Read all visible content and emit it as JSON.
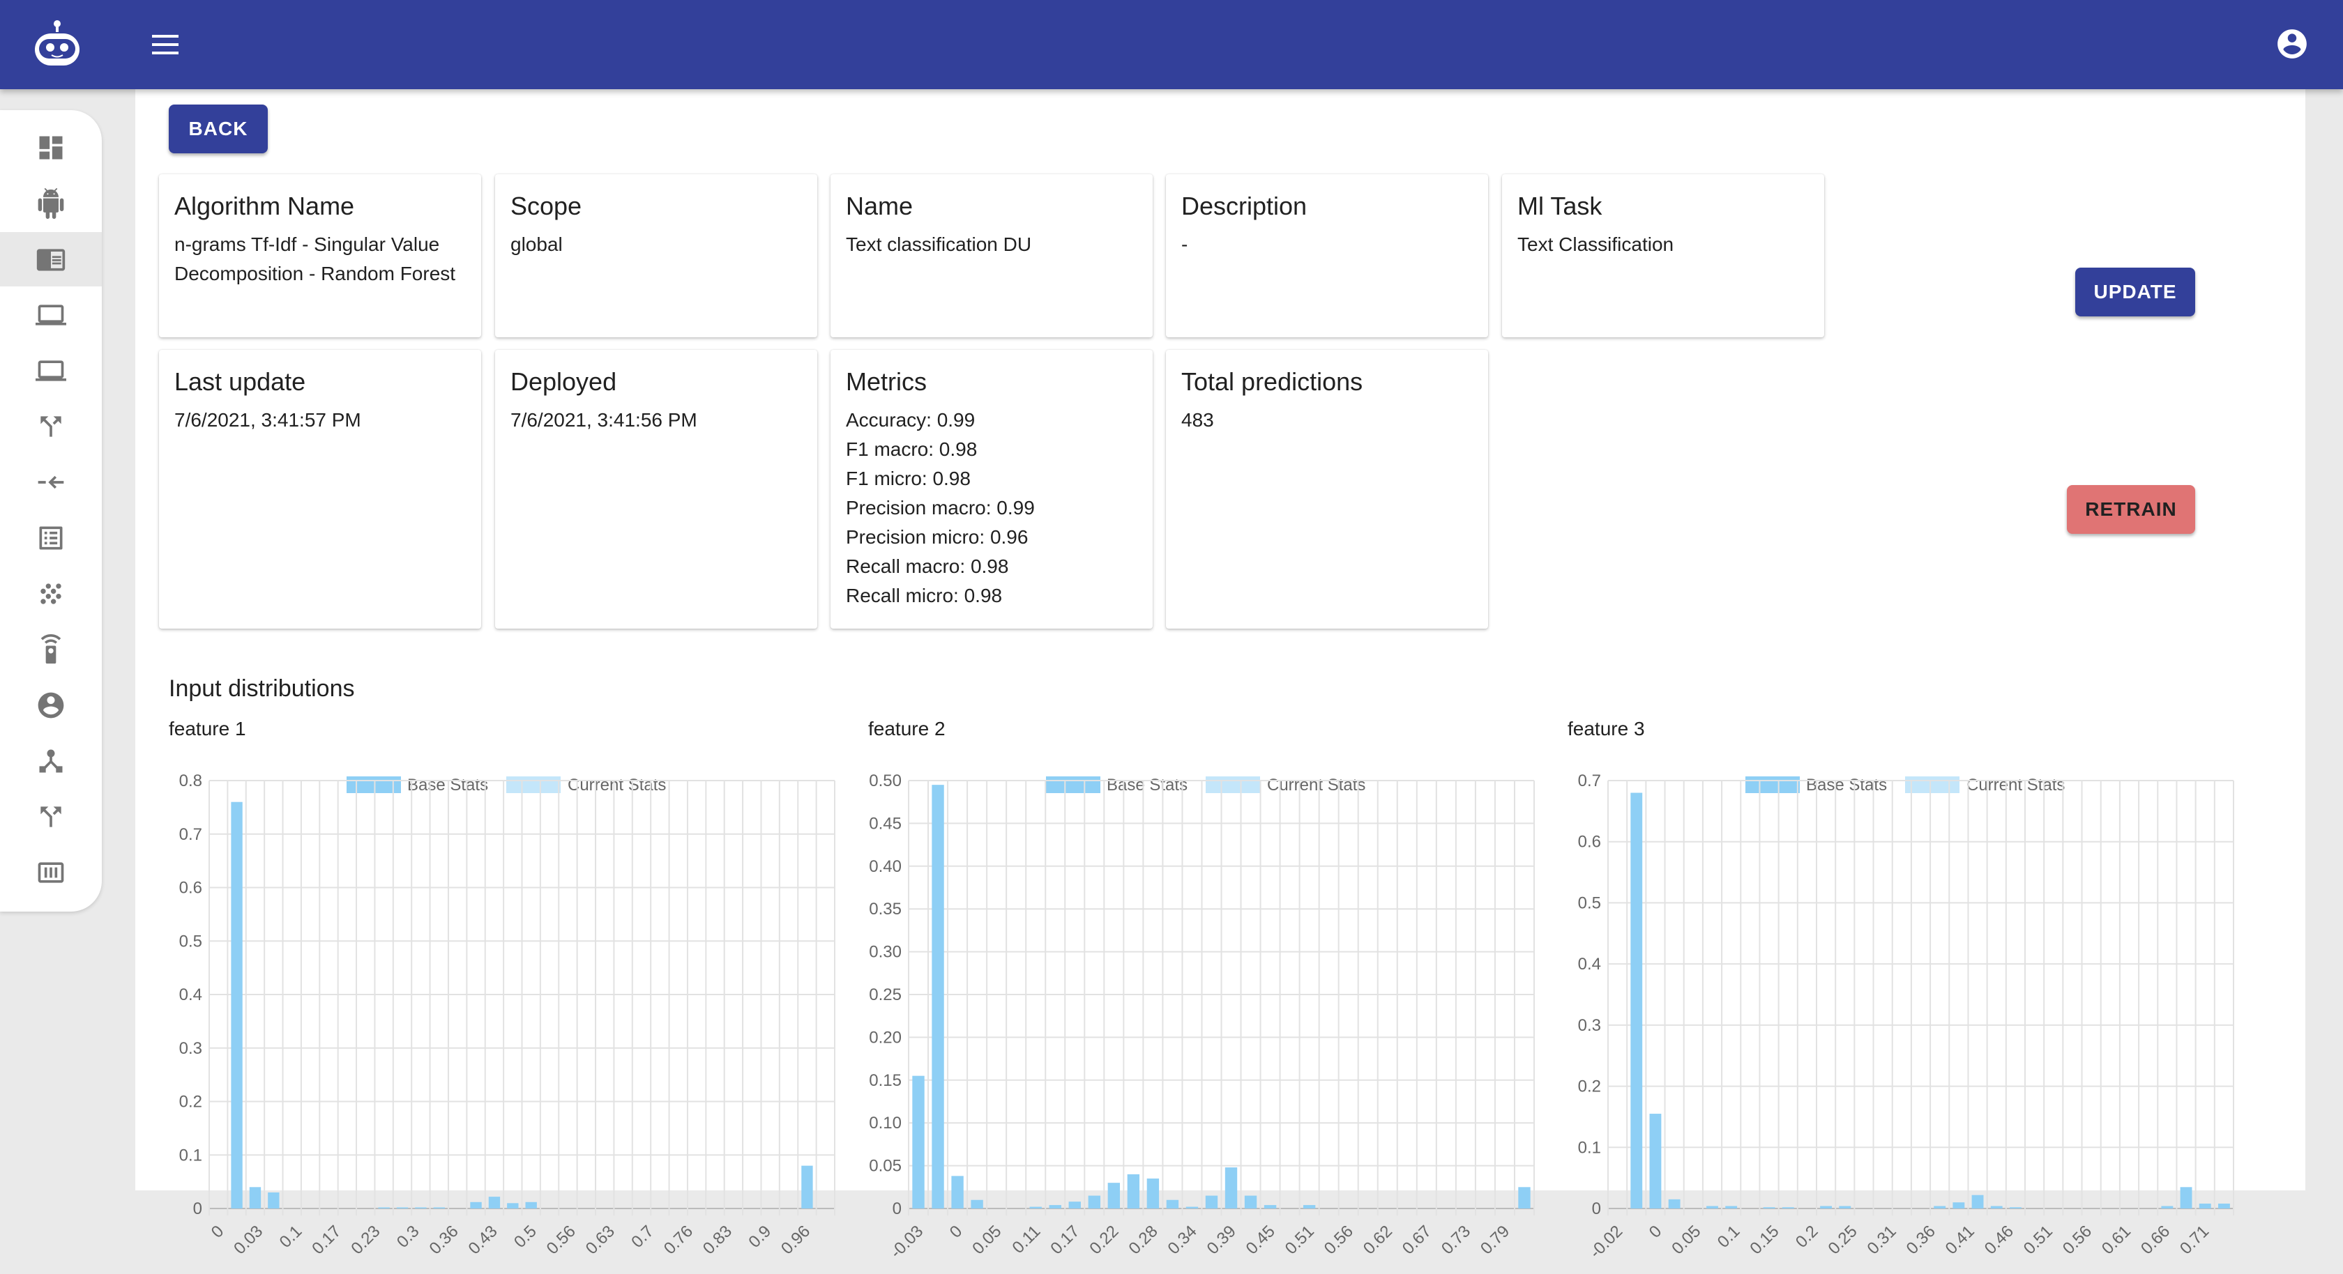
{
  "header": {
    "logo": "robot-logo-icon",
    "menu_icon": "menu-icon",
    "account_icon": "account-circle-icon"
  },
  "sidebar": {
    "items": [
      {
        "icon": "dashboard-icon"
      },
      {
        "icon": "android-icon"
      },
      {
        "icon": "chrome-reader-mode-icon",
        "active": true
      },
      {
        "icon": "laptop-icon"
      },
      {
        "icon": "laptop-icon-2"
      },
      {
        "icon": "call-split-icon"
      },
      {
        "icon": "merge-arrows-icon"
      },
      {
        "icon": "list-alt-icon"
      },
      {
        "icon": "grain-dots-icon"
      },
      {
        "icon": "settings-remote-icon"
      },
      {
        "icon": "account-circle-icon"
      },
      {
        "icon": "device-hub-icon"
      },
      {
        "icon": "call-split-icon-2"
      },
      {
        "icon": "pin-icon"
      }
    ]
  },
  "buttons": {
    "back": "BACK",
    "update": "UPDATE",
    "retrain": "RETRAIN"
  },
  "cards": {
    "algorithm": {
      "title": "Algorithm Name",
      "value": "n-grams Tf-Idf - Singular Value Decomposition - Random Forest"
    },
    "scope": {
      "title": "Scope",
      "value": "global"
    },
    "name": {
      "title": "Name",
      "value": "Text classification DU"
    },
    "description": {
      "title": "Description",
      "value": "-"
    },
    "ml_task": {
      "title": "Ml Task",
      "value": "Text Classification"
    },
    "last_update": {
      "title": "Last update",
      "value": "7/6/2021, 3:41:57 PM"
    },
    "deployed": {
      "title": "Deployed",
      "value": "7/6/2021, 3:41:56 PM"
    },
    "metrics": {
      "title": "Metrics",
      "lines": [
        "Accuracy: 0.99",
        "F1 macro: 0.98",
        "F1 micro: 0.98",
        "Precision macro: 0.99",
        "Precision micro: 0.96",
        "Recall macro: 0.98",
        "Recall micro: 0.98"
      ]
    },
    "total_predictions": {
      "title": "Total predictions",
      "value": "483"
    }
  },
  "section_title": "Input distributions",
  "colors": {
    "primary": "#33409a",
    "retrain": "#e07474",
    "base_bar": "#8ecff5",
    "current_bar": "#c4e6fa"
  },
  "chart_data": [
    {
      "type": "bar",
      "title": "feature 1",
      "legend": [
        "Base Stats",
        "Current Stats"
      ],
      "legend_position": "top-center",
      "grid": true,
      "ylim": [
        0,
        0.8
      ],
      "yticks": [
        "0",
        "0.1",
        "0.2",
        "0.3",
        "0.4",
        "0.5",
        "0.6",
        "0.7",
        "0.8"
      ],
      "xtick_labels": [
        "0",
        "0.03",
        "0.1",
        "0.17",
        "0.23",
        "0.3",
        "0.36",
        "0.43",
        "0.5",
        "0.56",
        "0.63",
        "0.7",
        "0.76",
        "0.83",
        "0.9",
        "0.96"
      ],
      "series": [
        {
          "name": "Base Stats",
          "values": [
            0,
            0.76,
            0.04,
            0.03,
            0,
            0,
            0,
            0,
            0,
            0.002,
            0.002,
            0.002,
            0.002,
            0,
            0.012,
            0.022,
            0.01,
            0.012,
            0,
            0,
            0,
            0,
            0,
            0,
            0,
            0,
            0,
            0,
            0,
            0,
            0,
            0,
            0.08,
            0
          ]
        },
        {
          "name": "Current Stats",
          "values": []
        }
      ]
    },
    {
      "type": "bar",
      "title": "feature 2",
      "legend": [
        "Base Stats",
        "Current Stats"
      ],
      "legend_position": "top-center",
      "grid": true,
      "ylim": [
        0,
        0.5
      ],
      "yticks": [
        "0",
        "0.05",
        "0.10",
        "0.15",
        "0.20",
        "0.25",
        "0.30",
        "0.35",
        "0.40",
        "0.45",
        "0.50"
      ],
      "xtick_labels": [
        "-0.03",
        "0",
        "0.05",
        "0.11",
        "0.17",
        "0.22",
        "0.28",
        "0.34",
        "0.39",
        "0.45",
        "0.51",
        "0.56",
        "0.62",
        "0.67",
        "0.73",
        "0.79"
      ],
      "series": [
        {
          "name": "Base Stats",
          "values": [
            0.155,
            0.495,
            0.038,
            0.01,
            0,
            0,
            0.002,
            0.004,
            0.008,
            0.015,
            0.03,
            0.04,
            0.035,
            0.01,
            0.002,
            0.015,
            0.048,
            0.015,
            0.004,
            0,
            0.004,
            0,
            0,
            0,
            0,
            0,
            0,
            0,
            0,
            0,
            0,
            0.025
          ]
        },
        {
          "name": "Current Stats",
          "values": []
        }
      ]
    },
    {
      "type": "bar",
      "title": "feature 3",
      "legend": [
        "Base Stats",
        "Current Stats"
      ],
      "legend_position": "top-center",
      "grid": true,
      "ylim": [
        0,
        0.7
      ],
      "yticks": [
        "0",
        "0.1",
        "0.2",
        "0.3",
        "0.4",
        "0.5",
        "0.6",
        "0.7"
      ],
      "xtick_labels": [
        "-0.02",
        "0",
        "0.05",
        "0.1",
        "0.15",
        "0.2",
        "0.25",
        "0.31",
        "0.36",
        "0.41",
        "0.46",
        "0.51",
        "0.56",
        "0.61",
        "0.66",
        "0.71"
      ],
      "series": [
        {
          "name": "Base Stats",
          "values": [
            0,
            0.68,
            0.155,
            0.015,
            0,
            0.004,
            0.004,
            0,
            0.002,
            0.002,
            0,
            0.004,
            0.004,
            0,
            0,
            0,
            0,
            0.004,
            0.01,
            0.022,
            0.004,
            0.002,
            0,
            0,
            0,
            0,
            0,
            0,
            0,
            0.004,
            0.035,
            0.008,
            0.008
          ]
        },
        {
          "name": "Current Stats",
          "values": []
        }
      ]
    }
  ]
}
